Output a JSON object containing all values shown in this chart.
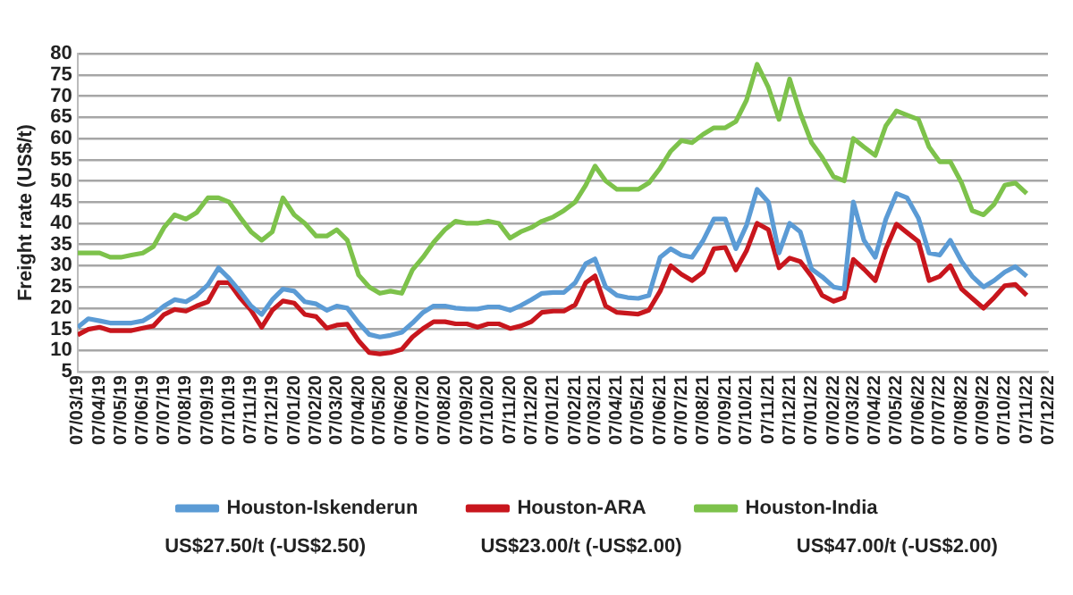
{
  "chart_data": {
    "type": "line",
    "ylabel": "Freight rate (US$/t)",
    "x": [
      "2019-03-07",
      "2019-03-22",
      "2019-04-07",
      "2019-04-22",
      "2019-05-07",
      "2019-05-22",
      "2019-06-07",
      "2019-06-22",
      "2019-07-07",
      "2019-07-22",
      "2019-08-07",
      "2019-08-22",
      "2019-09-07",
      "2019-09-22",
      "2019-10-07",
      "2019-10-22",
      "2019-11-07",
      "2019-11-22",
      "2019-12-07",
      "2019-12-22",
      "2020-01-07",
      "2020-01-22",
      "2020-02-07",
      "2020-02-22",
      "2020-03-07",
      "2020-03-22",
      "2020-04-07",
      "2020-04-22",
      "2020-05-07",
      "2020-05-22",
      "2020-06-07",
      "2020-06-22",
      "2020-07-07",
      "2020-07-22",
      "2020-08-07",
      "2020-08-22",
      "2020-09-07",
      "2020-09-22",
      "2020-10-07",
      "2020-10-22",
      "2020-11-07",
      "2020-11-22",
      "2020-12-07",
      "2020-12-22",
      "2021-01-07",
      "2021-01-22",
      "2021-02-07",
      "2021-02-22",
      "2021-03-07",
      "2021-03-22",
      "2021-04-07",
      "2021-04-22",
      "2021-05-07",
      "2021-05-22",
      "2021-06-07",
      "2021-06-22",
      "2021-07-07",
      "2021-07-22",
      "2021-08-07",
      "2021-08-22",
      "2021-09-07",
      "2021-09-22",
      "2021-10-07",
      "2021-10-22",
      "2021-11-07",
      "2021-11-22",
      "2021-12-07",
      "2021-12-22",
      "2022-01-07",
      "2022-01-22",
      "2022-02-07",
      "2022-02-22",
      "2022-03-07",
      "2022-03-22",
      "2022-04-07",
      "2022-04-22",
      "2022-05-07",
      "2022-05-22",
      "2022-06-07",
      "2022-06-22",
      "2022-07-07",
      "2022-07-22",
      "2022-08-07",
      "2022-08-22",
      "2022-09-07",
      "2022-09-22",
      "2022-10-07",
      "2022-10-22",
      "2022-11-07"
    ],
    "series": [
      {
        "name": "Houston-Iskenderun",
        "color": "#5b9bd5",
        "values": [
          15.5,
          17.5,
          17,
          16.5,
          16.5,
          16.5,
          17,
          18.5,
          20.5,
          22,
          21.5,
          23,
          25.5,
          29.5,
          27,
          24,
          20.5,
          18.5,
          22,
          24.5,
          24,
          21.5,
          21,
          19.5,
          20.5,
          20,
          16.5,
          13.8,
          13.2,
          13.6,
          14.3,
          16.5,
          19,
          20.5,
          20.5,
          20,
          19.8,
          19.8,
          20.3,
          20.3,
          19.5,
          20.6,
          22,
          23.5,
          23.7,
          23.7,
          26,
          30.5,
          31.6,
          25,
          23,
          22.5,
          22.3,
          23,
          32,
          34,
          32.5,
          32,
          36,
          41,
          41,
          34,
          39.5,
          48,
          45,
          33,
          40,
          38,
          29.2,
          27.4,
          25,
          24.5,
          45,
          36,
          32,
          41,
          47,
          46,
          41.2,
          33,
          32.5,
          36,
          31,
          27.5,
          25,
          26.5,
          28.5,
          29.8,
          27.5
        ]
      },
      {
        "name": "Houston-ARA",
        "color": "#c8161d",
        "values": [
          13.7,
          15,
          15.5,
          14.7,
          14.7,
          14.7,
          15.3,
          15.8,
          18.5,
          19.7,
          19.3,
          20.5,
          21.5,
          26,
          26,
          22.5,
          19.5,
          15.5,
          19.5,
          21.7,
          21.2,
          18.5,
          18,
          15.3,
          16,
          16.2,
          12.3,
          9.5,
          9.2,
          9.5,
          10.3,
          13.2,
          15.2,
          16.8,
          16.8,
          16.3,
          16.3,
          15.5,
          16.3,
          16.3,
          15.2,
          15.8,
          16.8,
          19,
          19.3,
          19.3,
          20.8,
          26,
          27.6,
          20.5,
          19,
          18.8,
          18.6,
          19.5,
          24,
          30,
          28,
          26.5,
          28.5,
          34,
          34.3,
          29,
          33.5,
          40,
          38.5,
          29.5,
          31.8,
          31,
          27.5,
          23,
          21.6,
          22.5,
          31.5,
          29.2,
          26.5,
          34,
          39.8,
          37.8,
          35.7,
          26.5,
          27.5,
          30,
          24.5,
          22.3,
          20,
          22.5,
          25.3,
          25.6,
          23
        ]
      },
      {
        "name": "Houston-India",
        "color": "#7dc24b",
        "values": [
          33,
          33,
          33,
          32,
          32,
          32.5,
          33,
          34.5,
          39,
          42,
          41,
          42.5,
          46,
          46,
          45,
          41.5,
          38,
          36,
          38,
          46,
          42,
          40,
          37,
          37,
          38.5,
          36,
          27.8,
          25,
          23.5,
          24,
          23.5,
          29,
          32,
          35.5,
          38.5,
          40.5,
          40,
          40,
          40.5,
          40,
          36.5,
          38,
          39,
          40.5,
          41.5,
          43,
          45,
          49,
          53.5,
          50,
          48,
          48,
          48,
          49.5,
          53,
          57,
          59.5,
          59,
          61,
          62.5,
          62.5,
          64,
          69,
          77.5,
          72,
          64.5,
          74,
          66,
          59,
          55.5,
          51,
          50,
          60,
          58,
          56,
          63,
          66.5,
          65.5,
          64.5,
          58,
          54.5,
          54.5,
          49.5,
          43,
          42,
          44.5,
          49,
          49.5,
          47
        ]
      }
    ],
    "xlim": [
      "2019-03-07",
      "2022-12-07"
    ],
    "xticks": [
      {
        "value": "2019-03-07",
        "label": "07/03/19"
      },
      {
        "value": "2019-04-07",
        "label": "07/04/19"
      },
      {
        "value": "2019-05-07",
        "label": "07/05/19"
      },
      {
        "value": "2019-06-07",
        "label": "07/06/19"
      },
      {
        "value": "2019-07-07",
        "label": "07/07/19"
      },
      {
        "value": "2019-08-07",
        "label": "07/08/19"
      },
      {
        "value": "2019-09-07",
        "label": "07/09/19"
      },
      {
        "value": "2019-10-07",
        "label": "07/10/19"
      },
      {
        "value": "2019-11-07",
        "label": "07/11/19"
      },
      {
        "value": "2019-12-07",
        "label": "07/12/19"
      },
      {
        "value": "2020-01-07",
        "label": "07/01/20"
      },
      {
        "value": "2020-02-07",
        "label": "07/02/20"
      },
      {
        "value": "2020-03-07",
        "label": "07/03/20"
      },
      {
        "value": "2020-04-07",
        "label": "07/04/20"
      },
      {
        "value": "2020-05-07",
        "label": "07/05/20"
      },
      {
        "value": "2020-06-07",
        "label": "07/06/20"
      },
      {
        "value": "2020-07-07",
        "label": "07/07/20"
      },
      {
        "value": "2020-08-07",
        "label": "07/08/20"
      },
      {
        "value": "2020-09-07",
        "label": "07/09/20"
      },
      {
        "value": "2020-10-07",
        "label": "07/10/20"
      },
      {
        "value": "2020-11-07",
        "label": "07/11/20"
      },
      {
        "value": "2020-12-07",
        "label": "07/12/20"
      },
      {
        "value": "2021-01-07",
        "label": "07/01/21"
      },
      {
        "value": "2021-02-07",
        "label": "07/02/21"
      },
      {
        "value": "2021-03-07",
        "label": "07/03/21"
      },
      {
        "value": "2021-04-07",
        "label": "07/04/21"
      },
      {
        "value": "2021-05-07",
        "label": "07/05/21"
      },
      {
        "value": "2021-06-07",
        "label": "07/06/21"
      },
      {
        "value": "2021-07-07",
        "label": "07/07/21"
      },
      {
        "value": "2021-08-07",
        "label": "07/08/21"
      },
      {
        "value": "2021-09-07",
        "label": "07/09/21"
      },
      {
        "value": "2021-10-07",
        "label": "07/10/21"
      },
      {
        "value": "2021-11-07",
        "label": "07/11/21"
      },
      {
        "value": "2021-12-07",
        "label": "07/12/21"
      },
      {
        "value": "2022-01-07",
        "label": "07/01/22"
      },
      {
        "value": "2022-02-07",
        "label": "07/02/22"
      },
      {
        "value": "2022-03-07",
        "label": "07/03/22"
      },
      {
        "value": "2022-04-07",
        "label": "07/04/22"
      },
      {
        "value": "2022-05-07",
        "label": "07/05/22"
      },
      {
        "value": "2022-06-07",
        "label": "07/06/22"
      },
      {
        "value": "2022-07-07",
        "label": "07/07/22"
      },
      {
        "value": "2022-08-07",
        "label": "07/08/22"
      },
      {
        "value": "2022-09-07",
        "label": "07/09/22"
      },
      {
        "value": "2022-10-07",
        "label": "07/10/22"
      },
      {
        "value": "2022-11-07",
        "label": "07/11/22"
      },
      {
        "value": "2022-12-07",
        "label": "07/12/22"
      }
    ],
    "ylim": [
      5,
      80
    ],
    "yticks": [
      5,
      10,
      15,
      20,
      25,
      30,
      35,
      40,
      45,
      50,
      55,
      60,
      65,
      70,
      75,
      80
    ],
    "grid": "y",
    "legend": "bottom",
    "marker": "none",
    "line_style": "solid",
    "annotations": [
      "US$27.50/t (-US$2.50)",
      "US$23.00/t (-US$2.00)",
      "US$47.00/t (-US$2.00)"
    ]
  }
}
